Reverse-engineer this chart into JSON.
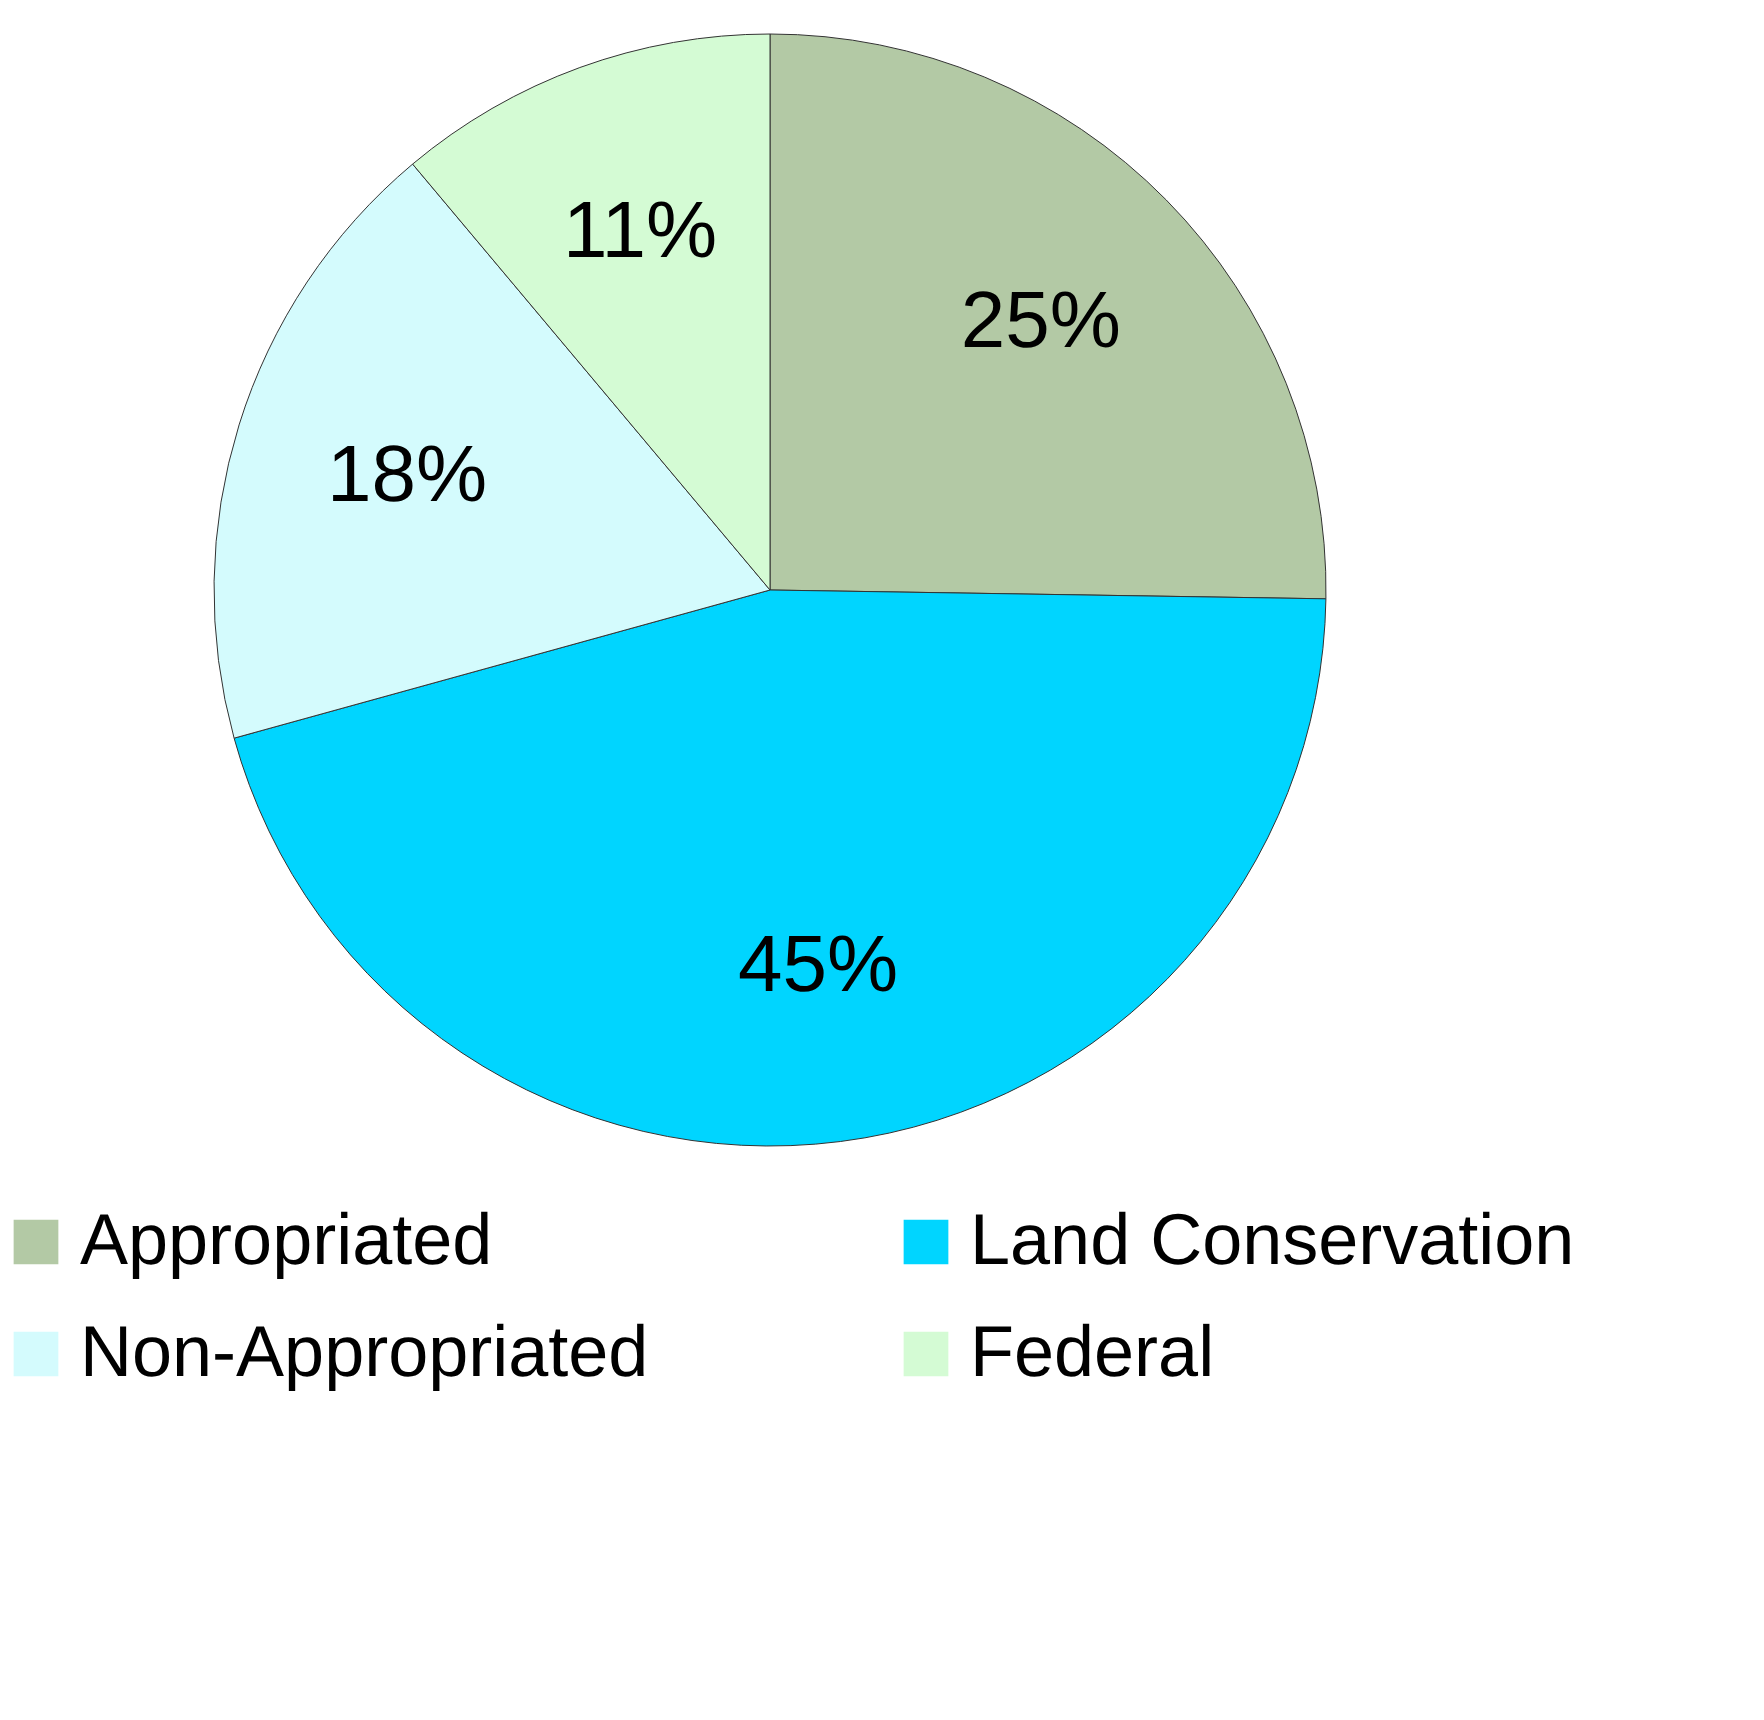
{
  "chart_data": {
    "type": "pie",
    "categories": [
      "Appropriated",
      "Land Conservation",
      "Non-Appropriated",
      "Federal"
    ],
    "values": [
      25,
      45,
      18,
      11
    ],
    "value_labels": [
      "25%",
      "45%",
      "18%",
      "11%"
    ],
    "colors": [
      "#b3c9a5",
      "#00d5ff",
      "#d4fbfd",
      "#d4fbd4"
    ],
    "legend": "bottom"
  }
}
